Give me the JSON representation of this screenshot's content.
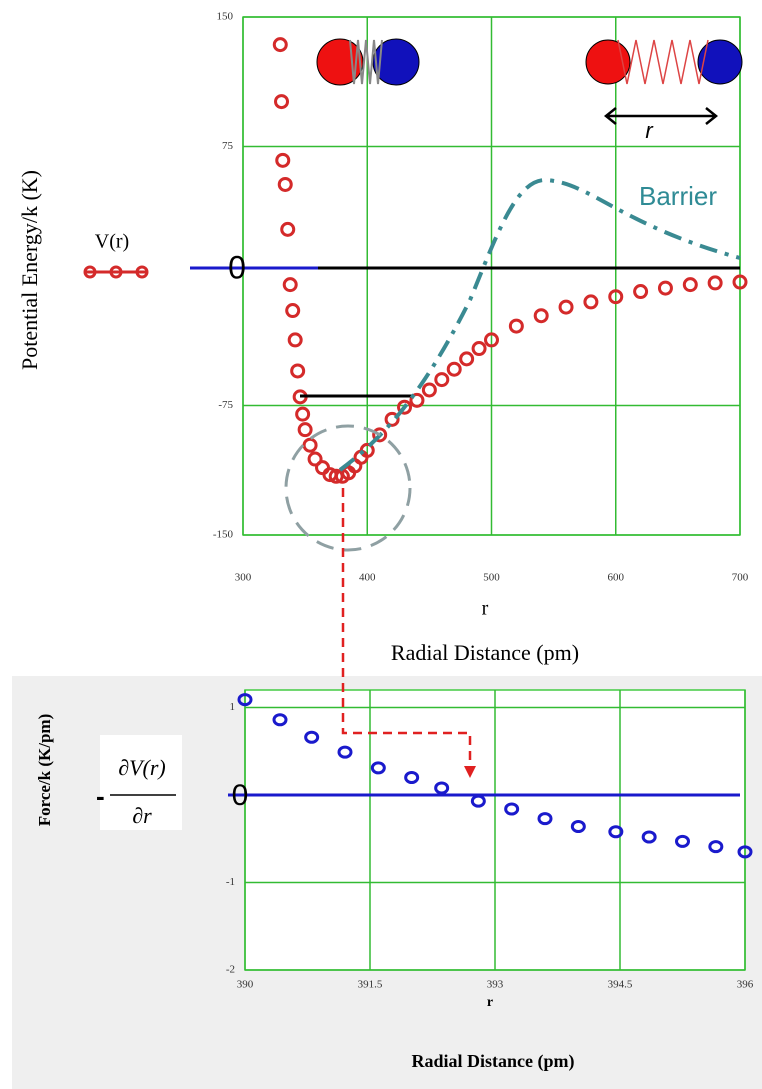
{
  "chart_data": [
    {
      "type": "scatter",
      "y_label": "Potential Energy/k (K)",
      "x_label_symbol": "r",
      "x_label": "Radial Distance (pm)",
      "xlim": [
        300,
        700
      ],
      "xticks": [
        300,
        400,
        500,
        600,
        700
      ],
      "ylim": [
        -150,
        150
      ],
      "yticks": [
        -150,
        -75,
        75,
        150
      ],
      "grid": true,
      "annotations": [
        "0",
        "Barrier",
        "r"
      ],
      "x": [
        330,
        331,
        332,
        334,
        336,
        338,
        340,
        342,
        344,
        346,
        348,
        350,
        354,
        358,
        364,
        370,
        375,
        380,
        385,
        390,
        395,
        400,
        410,
        420,
        430,
        440,
        450,
        460,
        470,
        480,
        490,
        500,
        520,
        540,
        560,
        580,
        600,
        620,
        640,
        660,
        680,
        700
      ],
      "series": [
        {
          "name": "V(r)",
          "color": "#d42a2a",
          "values": [
            134,
            101,
            67,
            53,
            27,
            -5,
            -20,
            -37,
            -55,
            -70,
            -80,
            -89,
            -98,
            -106,
            -111,
            -115,
            -116,
            -116,
            -114,
            -110,
            -105,
            -101,
            -92,
            -83,
            -76,
            -72,
            -66,
            -60,
            -54,
            -48,
            -42,
            -37,
            -29,
            -23,
            -18,
            -15,
            -12,
            -9,
            -7,
            -5,
            -4,
            -3.5
          ]
        }
      ]
    },
    {
      "type": "scatter",
      "y_label": "Force/k (K/pm)",
      "x_label_symbol": "r",
      "x_label": "Radial Distance (pm)",
      "xlim": [
        390,
        396
      ],
      "xticks": [
        390,
        391.5,
        393,
        394.5,
        396
      ],
      "ylim": [
        -2,
        1.2
      ],
      "yticks": [
        -2,
        -1,
        1
      ],
      "grid": true,
      "annotations": [
        "0"
      ],
      "legend": {
        "sign": "-",
        "numerator": "∂V(r)",
        "denominator": "∂r"
      },
      "x": [
        390,
        390.42,
        390.8,
        391.2,
        391.6,
        392,
        392.36,
        392.8,
        393.2,
        393.6,
        394,
        394.45,
        394.85,
        395.25,
        395.65,
        396
      ],
      "series": [
        {
          "color": "#1a1acc",
          "values": [
            1.09,
            0.86,
            0.66,
            0.49,
            0.31,
            0.2,
            0.08,
            -0.07,
            -0.16,
            -0.27,
            -0.36,
            -0.42,
            -0.48,
            -0.53,
            -0.59,
            -0.65
          ]
        }
      ]
    }
  ]
}
